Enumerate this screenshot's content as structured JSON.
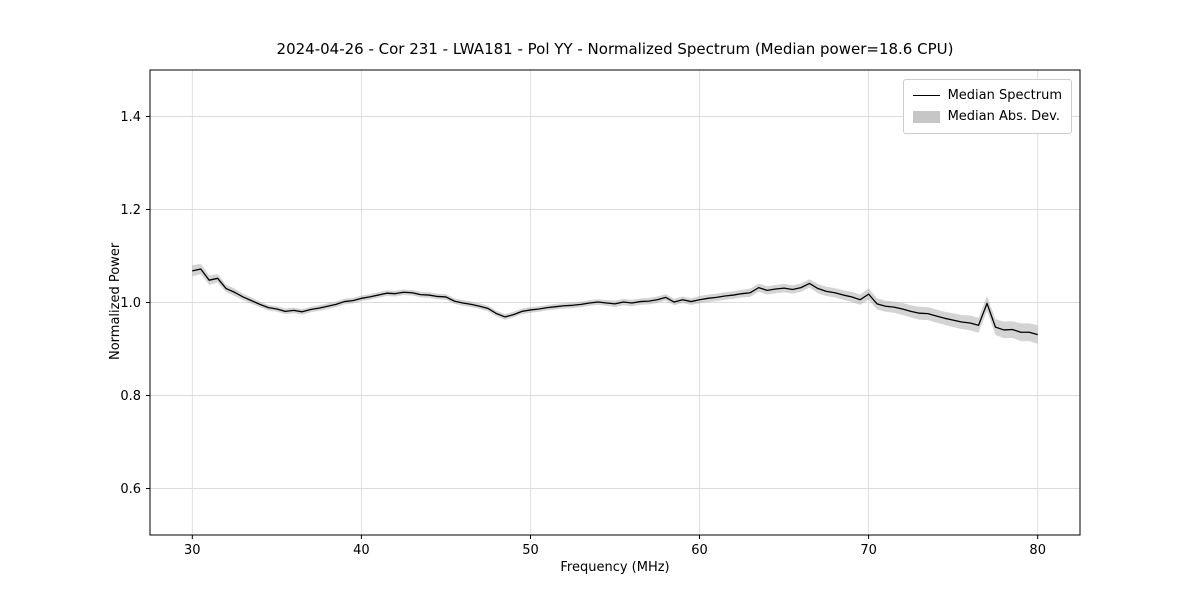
{
  "chart_data": {
    "type": "line",
    "title": "2024-04-26 - Cor 231 - LWA181 - Pol YY - Normalized Spectrum (Median power=18.6 CPU)",
    "xlabel": "Frequency (MHz)",
    "ylabel": "Normalized Power",
    "xlim": [
      27.5,
      82.5
    ],
    "ylim": [
      0.5,
      1.5
    ],
    "xticks": [
      30,
      40,
      50,
      60,
      70,
      80
    ],
    "yticks": [
      0.6,
      0.8,
      1.0,
      1.2,
      1.4
    ],
    "grid": true,
    "legend": {
      "position": "upper right",
      "entries": [
        {
          "label": "Median Spectrum",
          "marker": "line",
          "color": "#000000"
        },
        {
          "label": "Median Abs. Dev.",
          "marker": "patch",
          "color": "#c6c6c6"
        }
      ]
    },
    "line_color": "#000000",
    "band_color": "#aaaaaa",
    "band_opacity": 0.5,
    "x": [
      30.0,
      30.5,
      31.0,
      31.5,
      32.0,
      32.5,
      33.0,
      33.5,
      34.0,
      34.5,
      35.0,
      35.5,
      36.0,
      36.5,
      37.0,
      37.5,
      38.0,
      38.5,
      39.0,
      39.5,
      40.0,
      40.5,
      41.0,
      41.5,
      42.0,
      42.5,
      43.0,
      43.5,
      44.0,
      44.5,
      45.0,
      45.5,
      46.0,
      46.5,
      47.0,
      47.5,
      48.0,
      48.5,
      49.0,
      49.5,
      50.0,
      50.5,
      51.0,
      51.5,
      52.0,
      52.5,
      53.0,
      53.5,
      54.0,
      54.5,
      55.0,
      55.5,
      56.0,
      56.5,
      57.0,
      57.5,
      58.0,
      58.5,
      59.0,
      59.5,
      60.0,
      60.5,
      61.0,
      61.5,
      62.0,
      62.5,
      63.0,
      63.5,
      64.0,
      64.5,
      65.0,
      65.5,
      66.0,
      66.5,
      67.0,
      67.5,
      68.0,
      68.5,
      69.0,
      69.5,
      70.0,
      70.5,
      71.0,
      71.5,
      72.0,
      72.5,
      73.0,
      73.5,
      74.0,
      74.5,
      75.0,
      75.5,
      76.0,
      76.5,
      77.0,
      77.5,
      78.0,
      78.5,
      79.0,
      79.5,
      80.0
    ],
    "y": [
      1.068,
      1.072,
      1.048,
      1.052,
      1.03,
      1.022,
      1.012,
      1.004,
      0.996,
      0.989,
      0.986,
      0.981,
      0.983,
      0.98,
      0.985,
      0.988,
      0.992,
      0.996,
      1.002,
      1.004,
      1.009,
      1.012,
      1.016,
      1.02,
      1.019,
      1.022,
      1.021,
      1.017,
      1.016,
      1.013,
      1.012,
      1.003,
      0.999,
      0.996,
      0.992,
      0.987,
      0.976,
      0.969,
      0.974,
      0.981,
      0.984,
      0.986,
      0.989,
      0.991,
      0.993,
      0.994,
      0.996,
      0.999,
      1.001,
      0.999,
      0.997,
      1.001,
      0.999,
      1.002,
      1.003,
      1.006,
      1.011,
      1.001,
      1.006,
      1.002,
      1.006,
      1.009,
      1.011,
      1.014,
      1.016,
      1.019,
      1.021,
      1.032,
      1.026,
      1.029,
      1.031,
      1.028,
      1.032,
      1.041,
      1.03,
      1.024,
      1.021,
      1.016,
      1.012,
      1.006,
      1.018,
      0.997,
      0.992,
      0.99,
      0.986,
      0.981,
      0.977,
      0.976,
      0.971,
      0.966,
      0.962,
      0.958,
      0.956,
      0.951,
      0.998,
      0.947,
      0.941,
      0.942,
      0.936,
      0.936,
      0.931
    ],
    "mad": [
      0.012,
      0.011,
      0.01,
      0.009,
      0.008,
      0.008,
      0.007,
      0.007,
      0.006,
      0.006,
      0.006,
      0.006,
      0.006,
      0.006,
      0.006,
      0.006,
      0.006,
      0.006,
      0.006,
      0.006,
      0.006,
      0.006,
      0.006,
      0.006,
      0.006,
      0.006,
      0.006,
      0.006,
      0.006,
      0.006,
      0.006,
      0.006,
      0.006,
      0.006,
      0.006,
      0.006,
      0.006,
      0.006,
      0.006,
      0.006,
      0.006,
      0.006,
      0.006,
      0.006,
      0.006,
      0.006,
      0.006,
      0.006,
      0.006,
      0.006,
      0.007,
      0.007,
      0.007,
      0.007,
      0.007,
      0.007,
      0.007,
      0.007,
      0.007,
      0.007,
      0.008,
      0.008,
      0.008,
      0.008,
      0.008,
      0.008,
      0.009,
      0.009,
      0.009,
      0.009,
      0.009,
      0.009,
      0.009,
      0.009,
      0.01,
      0.01,
      0.01,
      0.01,
      0.011,
      0.011,
      0.012,
      0.012,
      0.012,
      0.012,
      0.013,
      0.013,
      0.014,
      0.014,
      0.014,
      0.014,
      0.015,
      0.015,
      0.016,
      0.016,
      0.016,
      0.017,
      0.018,
      0.018,
      0.019,
      0.019,
      0.02
    ]
  }
}
